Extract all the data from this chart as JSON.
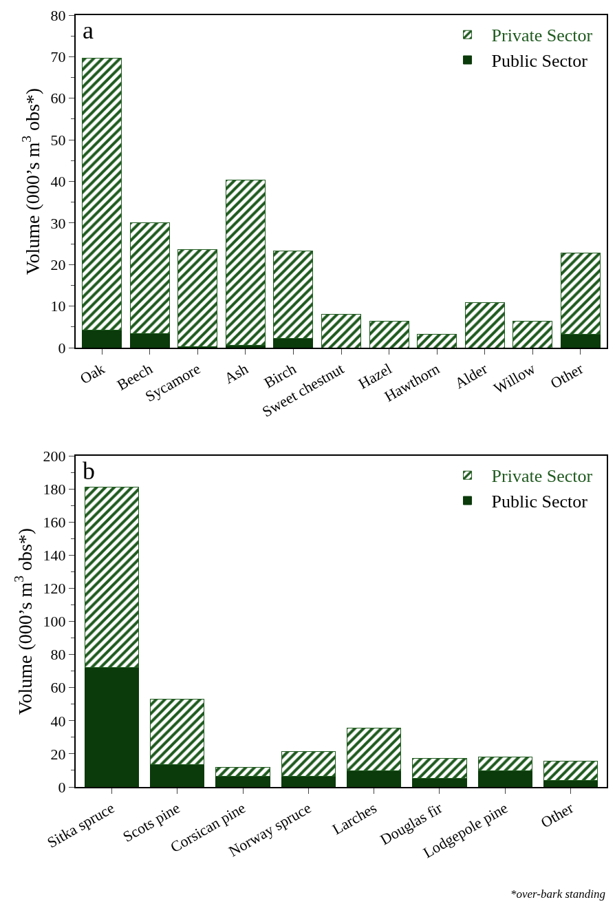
{
  "chart_data": [
    {
      "type": "bar",
      "stacked": true,
      "ylabel": "Volume (000’s m$^{3}$ obs*)",
      "annotations": [
        "a"
      ],
      "categories": [
        "Oak",
        "Beech",
        "Sycamore",
        "Ash",
        "Birch",
        "Sweet chestnut",
        "Hazel",
        "Hawthorn",
        "Alder",
        "Willow",
        "Other"
      ],
      "series": [
        {
          "name": "Public Sector",
          "color": "#0b3a0b",
          "values": [
            4.3,
            3.4,
            0.2,
            0.5,
            2.3,
            0,
            0,
            0,
            0,
            0,
            3.3
          ]
        },
        {
          "name": "Private Sector",
          "color": "#1f5a1f",
          "values": [
            65.4,
            26.6,
            23.4,
            39.8,
            20.9,
            8.0,
            6.4,
            3.3,
            10.9,
            6.4,
            19.5
          ]
        }
      ],
      "ylim": [
        0,
        80
      ],
      "yticks": [
        0,
        {
          "value": 5,
          "label": null
        },
        10,
        {
          "value": 15,
          "label": null
        },
        20,
        {
          "value": 25,
          "label": null
        },
        30,
        {
          "value": 35,
          "label": null
        },
        40,
        {
          "value": 45,
          "label": null
        },
        50,
        {
          "value": 55,
          "label": null
        },
        60,
        {
          "value": 65,
          "label": null
        },
        70,
        {
          "value": 75,
          "label": null
        },
        80
      ],
      "grid": false,
      "legend": "top right"
    },
    {
      "type": "bar",
      "stacked": true,
      "ylabel": "Volume (000’s m$^{3}$ obs*)",
      "annotations": [
        "b",
        "*over-bark standing"
      ],
      "categories": [
        "Sitka spruce",
        "Scots pine",
        "Corsican pine",
        "Norway spruce",
        "Larches",
        "Douglas fir",
        "Lodgepole pine",
        "Other"
      ],
      "series": [
        {
          "name": "Public Sector",
          "color": "#0b3a0b",
          "values": [
            72,
            13.5,
            6.5,
            6.5,
            9.6,
            5.3,
            9.6,
            3.9
          ]
        },
        {
          "name": "Private Sector",
          "color": "#1f5a1f",
          "values": [
            109,
            39.5,
            5.2,
            14.8,
            26,
            11.9,
            8.6,
            11.6
          ]
        }
      ],
      "ylim": [
        0,
        200
      ],
      "yticks": [
        0,
        {
          "value": 10,
          "label": null
        },
        20,
        {
          "value": 30,
          "label": null
        },
        40,
        {
          "value": 50,
          "label": null
        },
        60,
        {
          "value": 70,
          "label": null
        },
        80,
        {
          "value": 90,
          "label": null
        },
        100,
        {
          "value": 110,
          "label": null
        },
        120,
        {
          "value": 130,
          "label": null
        },
        140,
        {
          "value": 150,
          "label": null
        },
        160,
        {
          "value": 170,
          "label": null
        },
        180,
        {
          "value": 190,
          "label": null
        },
        200
      ],
      "grid": false,
      "legend": "top right"
    }
  ]
}
